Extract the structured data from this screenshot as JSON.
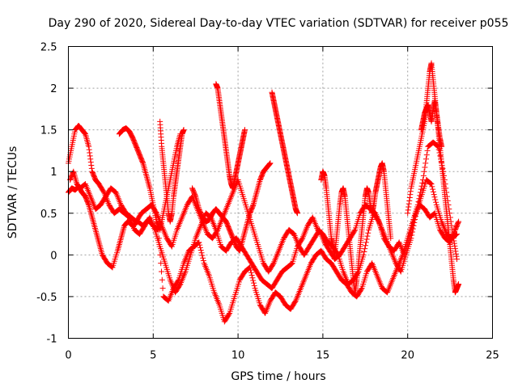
{
  "chart_data": {
    "type": "scatter",
    "title": "Day 290 of 2020, Sidereal Day-to-day VTEC variation (SDTVAR) for receiver p055",
    "xlabel": "GPS time / hours",
    "ylabel": "SDTVAR / TECUs",
    "xlim": [
      0,
      25
    ],
    "ylim": [
      -1,
      2.5
    ],
    "xticks": [
      0,
      5,
      10,
      15,
      20,
      25
    ],
    "yticks": [
      -1,
      -0.5,
      0,
      0.5,
      1,
      1.5,
      2,
      2.5
    ],
    "ytick_labels": [
      "-1",
      "-0.5",
      "0",
      "0.5",
      "1",
      "1.5",
      "2",
      "2.5"
    ],
    "grid": true,
    "marker": "+",
    "color": "#ff0000",
    "series": [
      {
        "name": "s1",
        "x": [
          0.0,
          0.2,
          0.4,
          0.6,
          0.8,
          1.0,
          1.2,
          1.4,
          1.6,
          1.8,
          2.0,
          2.3,
          2.6,
          2.9,
          3.1,
          3.3,
          3.5,
          3.8,
          4.1,
          4.4,
          4.7,
          5.0,
          5.3,
          5.6,
          5.9,
          6.2,
          6.5,
          6.8,
          7.1,
          7.4,
          7.7,
          8.0,
          8.3,
          8.6,
          8.9,
          9.2,
          9.5,
          9.8,
          10.1,
          10.4,
          10.7,
          11.0,
          11.3,
          11.6,
          11.9,
          12.2,
          12.5,
          12.8,
          13.1,
          13.4,
          13.7,
          14.0,
          14.3,
          14.6,
          14.9,
          15.2,
          15.5,
          15.8,
          16.1,
          16.4,
          16.7,
          17.0,
          17.3,
          17.6,
          17.9,
          18.2,
          18.5,
          18.8,
          19.1,
          19.4,
          19.7,
          20.0,
          20.3,
          20.6,
          20.9,
          21.2,
          21.5,
          21.8,
          22.1,
          22.4,
          22.7,
          22.9
        ],
        "y": [
          0.75,
          0.8,
          0.78,
          0.82,
          0.75,
          0.7,
          0.6,
          0.45,
          0.3,
          0.15,
          0.0,
          -0.1,
          -0.15,
          0.05,
          0.2,
          0.35,
          0.4,
          0.35,
          0.4,
          0.35,
          0.42,
          0.35,
          0.3,
          -0.5,
          -0.55,
          -0.4,
          -0.3,
          -0.1,
          0.05,
          0.1,
          0.15,
          -0.1,
          -0.25,
          -0.45,
          -0.6,
          -0.8,
          -0.7,
          -0.5,
          -0.3,
          -0.2,
          -0.15,
          -0.4,
          -0.6,
          -0.7,
          -0.55,
          -0.45,
          -0.5,
          -0.6,
          -0.65,
          -0.55,
          -0.4,
          -0.25,
          -0.1,
          0.0,
          0.05,
          -0.05,
          -0.1,
          -0.2,
          -0.3,
          -0.35,
          -0.45,
          -0.5,
          -0.4,
          -0.2,
          -0.1,
          -0.25,
          -0.4,
          -0.45,
          -0.3,
          -0.15,
          0.0,
          0.2,
          0.4,
          0.6,
          0.9,
          1.3,
          1.35,
          1.3,
          1.0,
          0.6,
          0.2,
          -0.05
        ]
      },
      {
        "name": "s2",
        "x": [
          0.0,
          0.2,
          0.4,
          0.6,
          0.8,
          1.0,
          1.2,
          1.4,
          1.6,
          1.8,
          2.1,
          2.4,
          2.7,
          3.0,
          3.3,
          3.6,
          3.9,
          4.2,
          4.5,
          4.8,
          5.1,
          5.4,
          5.7,
          6.0,
          6.3,
          6.6,
          6.9,
          7.2,
          7.5,
          7.8,
          8.1,
          8.4,
          8.7,
          9.0,
          9.3,
          9.6,
          9.9,
          10.2,
          10.5,
          10.8,
          11.1,
          11.4,
          11.7,
          12.0,
          12.3,
          12.6,
          12.9,
          13.2,
          13.5,
          13.8,
          14.1,
          14.4,
          14.7,
          15.0,
          15.3,
          15.6,
          15.9,
          16.2,
          16.5,
          16.8,
          17.1,
          17.4,
          17.7,
          18.0,
          18.3,
          18.6,
          18.9,
          19.2,
          19.5,
          19.8,
          20.1,
          20.4,
          20.7,
          21.0,
          21.3,
          21.6,
          21.9,
          22.2,
          22.5,
          22.8,
          23.0
        ],
        "y": [
          1.1,
          1.3,
          1.5,
          1.55,
          1.5,
          1.45,
          1.3,
          1.0,
          0.9,
          0.85,
          0.75,
          0.6,
          0.5,
          0.55,
          0.5,
          0.45,
          0.3,
          0.25,
          0.35,
          0.45,
          0.3,
          0.1,
          -0.1,
          -0.3,
          -0.45,
          -0.35,
          -0.2,
          0.0,
          0.2,
          0.35,
          0.5,
          0.45,
          0.3,
          0.1,
          0.05,
          0.15,
          0.2,
          0.1,
          0.0,
          -0.1,
          -0.2,
          -0.3,
          -0.35,
          -0.4,
          -0.3,
          -0.2,
          -0.15,
          -0.1,
          0.1,
          0.2,
          0.35,
          0.45,
          0.3,
          0.25,
          0.15,
          0.1,
          0.0,
          -0.2,
          -0.35,
          -0.3,
          -0.2,
          0.0,
          0.3,
          0.5,
          0.4,
          0.2,
          0.1,
          0.05,
          0.15,
          0.0,
          0.2,
          0.45,
          0.6,
          0.55,
          0.45,
          0.5,
          0.3,
          0.2,
          0.15,
          0.3,
          0.4
        ]
      },
      {
        "name": "s3",
        "x": [
          0.1,
          0.3,
          0.5,
          0.7,
          1.0,
          1.3,
          1.6,
          1.9,
          2.2,
          2.5,
          2.8,
          3.1,
          3.4,
          3.7,
          4.0,
          4.3,
          4.6,
          4.9,
          5.2,
          5.5,
          5.8,
          6.1,
          6.4,
          6.7,
          7.0,
          7.3,
          7.6,
          7.9,
          8.2,
          8.5,
          8.8,
          9.1,
          9.4,
          9.7,
          10.0,
          10.3,
          10.6,
          10.9,
          11.2,
          11.5,
          11.8,
          12.1,
          12.4,
          12.7,
          13.0,
          13.3,
          13.6,
          13.9,
          14.2,
          14.5,
          14.8,
          15.1,
          15.4,
          15.7,
          16.0,
          16.3,
          16.6,
          16.9,
          17.2,
          17.5,
          17.8,
          18.1,
          18.4,
          18.7,
          19.0,
          19.3,
          19.6,
          19.9,
          20.2,
          20.5,
          20.8,
          21.1,
          21.4,
          21.7,
          22.0,
          22.3,
          22.6,
          22.9
        ],
        "y": [
          0.9,
          1.0,
          0.85,
          0.8,
          0.85,
          0.7,
          0.55,
          0.6,
          0.7,
          0.8,
          0.75,
          0.6,
          0.5,
          0.45,
          0.4,
          0.5,
          0.55,
          0.6,
          0.5,
          0.35,
          0.2,
          0.1,
          0.3,
          0.45,
          0.6,
          0.7,
          0.55,
          0.4,
          0.25,
          0.2,
          0.3,
          0.45,
          0.6,
          0.75,
          0.9,
          0.7,
          0.5,
          0.3,
          0.1,
          -0.1,
          -0.2,
          -0.1,
          0.05,
          0.2,
          0.3,
          0.25,
          0.1,
          0.0,
          0.1,
          0.2,
          0.3,
          0.15,
          0.05,
          -0.05,
          0.0,
          0.1,
          0.2,
          0.3,
          0.5,
          0.6,
          0.55,
          0.5,
          0.35,
          0.2,
          0.05,
          -0.1,
          -0.2,
          0.0,
          0.2,
          0.5,
          0.7,
          0.9,
          0.85,
          0.6,
          0.4,
          0.25,
          0.2,
          0.25
        ]
      },
      {
        "name": "s4",
        "x": [
          3.0,
          3.2,
          3.4,
          3.6,
          3.8,
          4.0,
          4.2,
          4.4,
          4.6,
          4.8,
          5.0,
          5.2,
          5.4,
          5.6,
          5.8,
          6.0,
          6.2,
          6.4,
          6.6
        ],
        "y": [
          1.45,
          1.5,
          1.52,
          1.48,
          1.4,
          1.3,
          1.2,
          1.1,
          0.95,
          0.8,
          0.6,
          0.4,
          0.3,
          0.5,
          0.7,
          0.9,
          1.1,
          1.3,
          1.45
        ]
      },
      {
        "name": "s5",
        "x": [
          8.7,
          8.8,
          8.9,
          9.0,
          9.1,
          9.2,
          9.3,
          9.4,
          9.5,
          9.6,
          9.7,
          9.8,
          9.9,
          10.0,
          10.1,
          10.2,
          10.3,
          10.4
        ],
        "y": [
          2.05,
          2.0,
          1.85,
          1.7,
          1.55,
          1.4,
          1.25,
          1.1,
          0.95,
          0.85,
          0.8,
          0.9,
          1.0,
          1.1,
          1.2,
          1.3,
          1.4,
          1.5
        ]
      },
      {
        "name": "s6",
        "x": [
          12.0,
          12.1,
          12.2,
          12.3,
          12.4,
          12.5,
          12.6,
          12.7,
          12.8,
          12.9,
          13.0,
          13.1,
          13.2,
          13.3,
          13.4,
          13.5
        ],
        "y": [
          1.95,
          1.85,
          1.75,
          1.65,
          1.55,
          1.45,
          1.35,
          1.25,
          1.15,
          1.05,
          0.95,
          0.85,
          0.75,
          0.65,
          0.55,
          0.5
        ]
      },
      {
        "name": "s7",
        "x": [
          5.4,
          5.5,
          5.6,
          5.7,
          5.8,
          5.9,
          6.0,
          6.1,
          6.2,
          6.3,
          6.4,
          6.5,
          6.6,
          6.7,
          6.8
        ],
        "y": [
          1.6,
          1.3,
          1.1,
          0.9,
          0.7,
          0.5,
          0.4,
          0.5,
          0.7,
          0.85,
          1.0,
          1.15,
          1.3,
          1.45,
          1.5
        ]
      },
      {
        "name": "s8",
        "x": [
          7.3,
          7.5,
          7.7,
          7.9,
          8.1,
          8.3,
          8.5,
          8.7,
          8.9,
          9.1,
          9.3,
          9.5,
          9.7,
          9.9,
          10.1,
          10.3,
          10.5,
          10.7,
          10.9,
          11.1,
          11.3,
          11.5,
          11.7,
          11.9
        ],
        "y": [
          0.8,
          0.7,
          0.55,
          0.45,
          0.4,
          0.42,
          0.5,
          0.55,
          0.5,
          0.45,
          0.4,
          0.3,
          0.2,
          0.1,
          0.05,
          0.2,
          0.35,
          0.5,
          0.6,
          0.75,
          0.9,
          1.0,
          1.05,
          1.1
        ]
      },
      {
        "name": "s9",
        "x": [
          14.9,
          15.0,
          15.1,
          15.2,
          15.3,
          15.4,
          15.5,
          15.6,
          15.7,
          15.8,
          15.9,
          16.0,
          16.1,
          16.2,
          16.3,
          16.4,
          16.5,
          16.6,
          16.7,
          16.8,
          16.9,
          17.0,
          17.1,
          17.2,
          17.3,
          17.4,
          17.5,
          17.6,
          17.7,
          17.8,
          17.9,
          18.0,
          18.1,
          18.2,
          18.3,
          18.4,
          18.5,
          18.6,
          18.7,
          18.8,
          18.9,
          19.0
        ],
        "y": [
          0.9,
          1.0,
          0.95,
          0.8,
          0.6,
          0.4,
          0.2,
          0.1,
          0.0,
          0.2,
          0.4,
          0.6,
          0.75,
          0.8,
          0.7,
          0.5,
          0.3,
          0.1,
          -0.1,
          -0.3,
          -0.45,
          -0.3,
          -0.1,
          0.1,
          0.3,
          0.5,
          0.7,
          0.8,
          0.75,
          0.6,
          0.5,
          0.6,
          0.75,
          0.85,
          0.95,
          1.05,
          1.1,
          1.0,
          0.8,
          0.6,
          0.4,
          0.2
        ]
      },
      {
        "name": "s10",
        "x": [
          20.0,
          20.2,
          20.4,
          20.6,
          20.8,
          21.0,
          21.1,
          21.2,
          21.3,
          21.4,
          21.5,
          21.6,
          21.7,
          21.8,
          21.9,
          22.0,
          22.1,
          22.2,
          22.3,
          22.4,
          22.5,
          22.6,
          22.7,
          22.8,
          22.9,
          23.0
        ],
        "y": [
          0.5,
          0.8,
          1.0,
          1.2,
          1.4,
          1.6,
          1.8,
          2.0,
          2.2,
          2.3,
          2.1,
          1.9,
          1.7,
          1.5,
          1.3,
          1.1,
          0.9,
          0.7,
          0.5,
          0.3,
          0.1,
          -0.1,
          -0.3,
          -0.45,
          -0.4,
          -0.35
        ]
      },
      {
        "name": "s11",
        "x": [
          20.8,
          20.9,
          21.0,
          21.1,
          21.2,
          21.3,
          21.4,
          21.5,
          21.6,
          21.7,
          21.8,
          21.9,
          22.0
        ],
        "y": [
          1.5,
          1.6,
          1.7,
          1.75,
          1.8,
          1.7,
          1.6,
          1.75,
          1.85,
          1.7,
          1.55,
          1.4,
          1.3
        ]
      }
    ]
  }
}
